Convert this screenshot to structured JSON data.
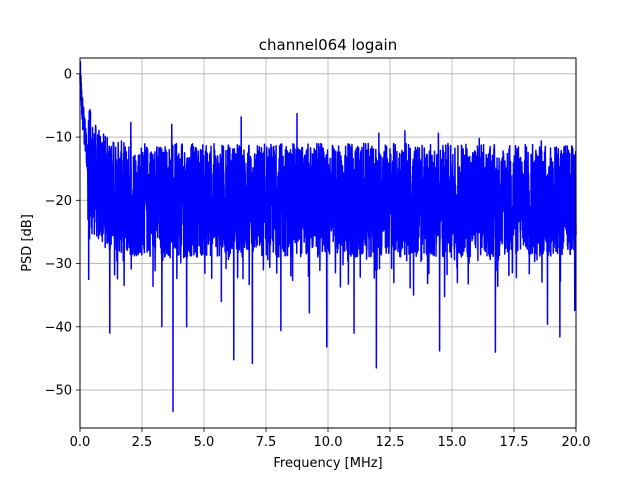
{
  "chart_data": {
    "type": "line",
    "title": "channel064 logain",
    "xlabel": "Frequency [MHz]",
    "ylabel": "PSD [dB]",
    "xlim": [
      0,
      20
    ],
    "ylim": [
      -56,
      2.5
    ],
    "xticks": [
      0.0,
      2.5,
      5.0,
      7.5,
      10.0,
      12.5,
      15.0,
      17.5,
      20.0
    ],
    "xtick_labels": [
      "0.0",
      "2.5",
      "5.0",
      "7.5",
      "10.0",
      "12.5",
      "15.0",
      "17.5",
      "20.0"
    ],
    "yticks": [
      0,
      -10,
      -20,
      -30,
      -40,
      -50
    ],
    "ytick_labels": [
      "0",
      "−10",
      "−20",
      "−30",
      "−40",
      "−50"
    ],
    "grid": true,
    "series": [
      {
        "color": "#0000ff",
        "x": [
          0.0,
          0.03,
          0.06,
          0.1,
          0.15,
          0.2,
          0.3,
          0.5,
          0.8,
          1.2,
          1.6,
          2.0,
          2.5,
          3.0,
          3.5,
          4.0,
          4.5,
          5.0,
          5.5,
          6.0,
          6.5,
          7.0,
          7.5,
          8.0,
          8.5,
          9.0,
          9.5,
          10.0,
          10.5,
          11.0,
          11.5,
          12.0,
          12.5,
          13.0,
          13.5,
          14.0,
          14.5,
          15.0,
          15.5,
          16.0,
          16.5,
          17.0,
          17.5,
          18.0,
          18.5,
          19.0,
          19.5,
          20.0
        ],
        "y": [
          0.0,
          -2.0,
          -4.0,
          -6.0,
          -8.0,
          -10.0,
          -13.0,
          -16.0,
          -18.0,
          -19.0,
          -19.5,
          -20.0,
          -20.0,
          -20.0,
          -20.0,
          -20.0,
          -20.0,
          -20.0,
          -20.0,
          -20.0,
          -20.0,
          -20.0,
          -20.0,
          -20.0,
          -20.0,
          -20.0,
          -20.0,
          -20.0,
          -20.0,
          -20.0,
          -20.0,
          -20.0,
          -20.0,
          -20.0,
          -20.0,
          -20.0,
          -20.0,
          -20.0,
          -20.0,
          -20.0,
          -20.0,
          -20.0,
          -20.0,
          -20.0,
          -20.0,
          -20.0,
          -20.0,
          -20.0
        ],
        "dips": [
          {
            "x": 0.35,
            "y": -32.5
          },
          {
            "x": 1.2,
            "y": -41.0
          },
          {
            "x": 2.05,
            "y": -44.2
          },
          {
            "x": 3.3,
            "y": -40.0
          },
          {
            "x": 3.75,
            "y": -53.4
          },
          {
            "x": 4.3,
            "y": -40.0
          },
          {
            "x": 5.7,
            "y": -36.0
          },
          {
            "x": 6.2,
            "y": -45.2
          },
          {
            "x": 6.95,
            "y": -45.8
          },
          {
            "x": 8.1,
            "y": -40.6
          },
          {
            "x": 9.25,
            "y": -37.8
          },
          {
            "x": 9.95,
            "y": -43.2
          },
          {
            "x": 11.05,
            "y": -41.0
          },
          {
            "x": 11.95,
            "y": -46.5
          },
          {
            "x": 13.45,
            "y": -35.0
          },
          {
            "x": 14.5,
            "y": -43.8
          },
          {
            "x": 14.7,
            "y": -35.2
          },
          {
            "x": 16.75,
            "y": -44.0
          },
          {
            "x": 18.85,
            "y": -39.6
          },
          {
            "x": 19.35,
            "y": -41.6
          },
          {
            "x": 19.95,
            "y": -37.4
          }
        ],
        "peaks": [
          {
            "x": 0.42,
            "y": -6.0
          },
          {
            "x": 2.05,
            "y": -7.7
          },
          {
            "x": 3.7,
            "y": -8.0
          },
          {
            "x": 6.5,
            "y": -6.8
          },
          {
            "x": 8.75,
            "y": -6.3
          },
          {
            "x": 12.05,
            "y": -9.4
          },
          {
            "x": 13.1,
            "y": -9.0
          },
          {
            "x": 14.45,
            "y": -9.4
          },
          {
            "x": 16.1,
            "y": -10.2
          },
          {
            "x": 18.6,
            "y": -10.6
          },
          {
            "x": 19.85,
            "y": -11.6
          }
        ]
      }
    ]
  }
}
